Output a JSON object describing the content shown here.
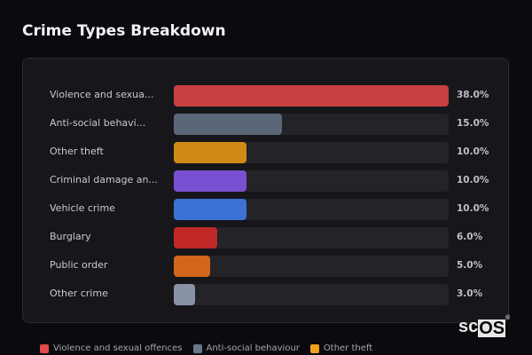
{
  "title": "Crime Types Breakdown",
  "logo_text": "scOS",
  "chart_data": {
    "type": "bar",
    "orientation": "horizontal",
    "title": "Crime Types Breakdown",
    "categories": [
      "Violence and sexua...",
      "Anti-social behavi...",
      "Other theft",
      "Criminal damage an...",
      "Vehicle crime",
      "Burglary",
      "Public order",
      "Other crime"
    ],
    "values": [
      38.0,
      15.0,
      10.0,
      10.0,
      10.0,
      6.0,
      5.0,
      3.0
    ],
    "value_labels": [
      "38.0%",
      "15.0%",
      "10.0%",
      "10.0%",
      "10.0%",
      "6.0%",
      "5.0%",
      "3.0%"
    ],
    "colors": [
      "#c94040",
      "#5b6678",
      "#cf8a17",
      "#7a50d2",
      "#3b72d4",
      "#c02828",
      "#d2661b",
      "#8a93a6"
    ],
    "xlim": [
      0,
      38
    ],
    "grid": false,
    "legend_position": "bottom",
    "legend": [
      {
        "name": "Violence and sexual offences",
        "color": "#e24a4a"
      },
      {
        "name": "Anti-social behaviour",
        "color": "#6b7789"
      },
      {
        "name": "Other theft",
        "color": "#f2a11f"
      }
    ]
  }
}
